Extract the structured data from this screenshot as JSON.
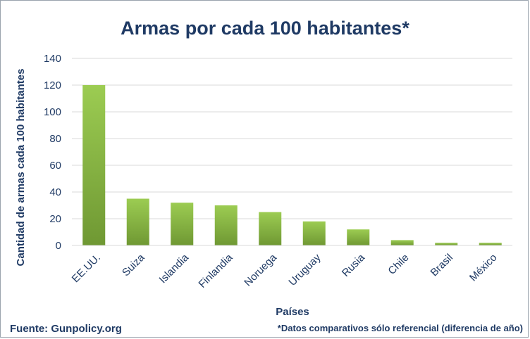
{
  "chart_data": {
    "type": "bar",
    "title": "Armas por cada 100 habitantes*",
    "xlabel": "Países",
    "ylabel": "Cantidad de armas cada 100 habitantes",
    "categories": [
      "EE.UU.",
      "Suiza",
      "Islandia",
      "Finlandia",
      "Noruega",
      "Uruguay",
      "Rusia",
      "Chile",
      "Brasil",
      "México"
    ],
    "values": [
      120,
      35,
      32,
      30,
      25,
      18,
      12,
      4,
      2,
      2
    ],
    "ylim": [
      0,
      140
    ],
    "yticks": [
      0,
      20,
      40,
      60,
      80,
      100,
      120,
      140
    ],
    "grid": true,
    "legend": "none",
    "colors": {
      "bar_top": "#9ccc52",
      "bar_bottom": "#6f9833",
      "text": "#1f3a64",
      "grid": "#d9d9d9"
    }
  },
  "footer": {
    "source": "Fuente: Gunpolicy.org",
    "note": "*Datos comparativos sólo referencial (diferencia de año)"
  }
}
